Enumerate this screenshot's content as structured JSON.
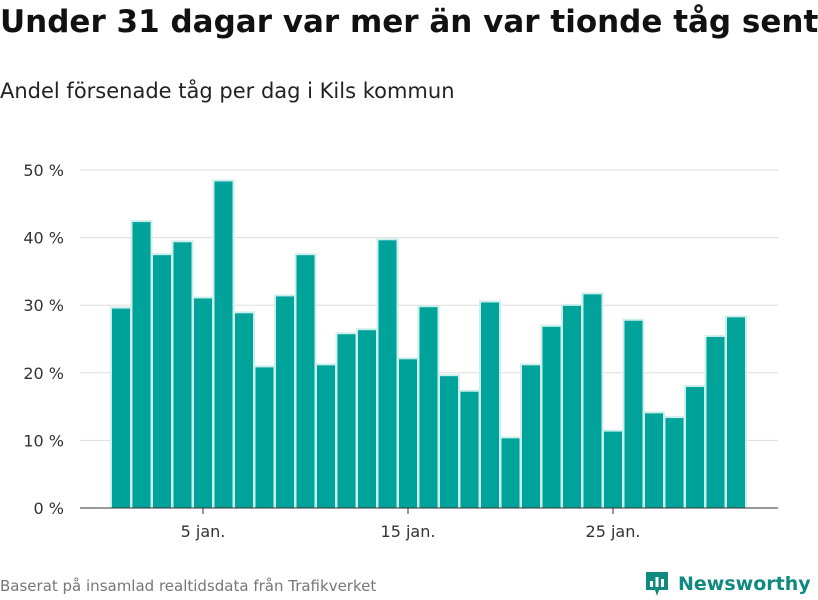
{
  "header": {
    "title": "Under 31 dagar var mer än var tionde tåg sent",
    "subtitle": "Andel försenade tåg per dag i Kils kommun"
  },
  "footer": {
    "source": "Baserat på insamlad realtidsdata från Trafikverket",
    "brand": "Newsworthy",
    "brand_icon": "bar-chart-icon"
  },
  "colors": {
    "bar": "#00a39a",
    "bar_glow": "#ccefec",
    "grid": "#dddddd",
    "axis": "#333333",
    "tick_text": "#333333",
    "brand": "#0e8a7f"
  },
  "chart_data": {
    "type": "bar",
    "title": "Andel försenade tåg per dag i Kils kommun",
    "x_unit": "day of January",
    "days": [
      1,
      2,
      3,
      4,
      5,
      6,
      7,
      8,
      9,
      10,
      11,
      12,
      13,
      14,
      15,
      16,
      17,
      18,
      19,
      20,
      21,
      22,
      23,
      24,
      25,
      26,
      27,
      28,
      29,
      30,
      31
    ],
    "values": [
      29.5,
      42.3,
      37.4,
      39.3,
      31.0,
      48.3,
      28.8,
      20.8,
      31.3,
      37.4,
      21.1,
      25.7,
      26.3,
      39.6,
      22.0,
      29.7,
      19.5,
      17.2,
      30.4,
      10.3,
      21.1,
      26.8,
      29.9,
      31.6,
      11.3,
      27.7,
      14.0,
      13.3,
      17.9,
      25.3,
      28.2
    ],
    "y_ticks": [
      0,
      10,
      20,
      30,
      40,
      50
    ],
    "y_tick_labels": [
      "0 %",
      "10 %",
      "20 %",
      "30 %",
      "40 %",
      "50 %"
    ],
    "ylim": [
      0,
      50
    ],
    "x_ticks": [
      5,
      15,
      25
    ],
    "x_tick_labels": [
      "5 jan.",
      "15 jan.",
      "25 jan."
    ],
    "grid": true,
    "legend": "none"
  }
}
